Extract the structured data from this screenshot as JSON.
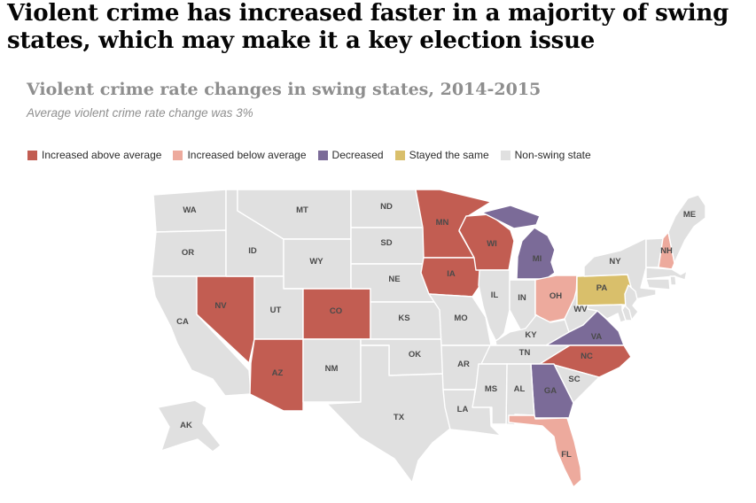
{
  "header": {
    "headline": "Violent crime has increased faster in a majority of swing states, which may make it a key election issue",
    "title": "Violent crime rate changes in swing states, 2014-2015",
    "subtitle": "Average violent crime rate change was 3%"
  },
  "chart_data": {
    "type": "heatmap",
    "subtype": "us-state-choropleth",
    "title": "Violent crime rate changes in swing states, 2014-2015",
    "note": "Average violent crime rate change was 3%",
    "average_change_percent": 3,
    "legend_position": "top",
    "default_category": "nonswing",
    "categories": [
      {
        "key": "above",
        "label": "Increased above average",
        "color": "#c25d52",
        "states": [
          "MN",
          "WI",
          "IA",
          "NV",
          "CO",
          "AZ",
          "NC"
        ]
      },
      {
        "key": "below",
        "label": "Increased below average",
        "color": "#edaa9d",
        "states": [
          "NH",
          "OH",
          "FL"
        ]
      },
      {
        "key": "decreased",
        "label": "Decreased",
        "color": "#7b6b98",
        "states": [
          "MI",
          "VA",
          "GA"
        ]
      },
      {
        "key": "same",
        "label": "Stayed the same",
        "color": "#d9bf6b",
        "states": [
          "PA"
        ]
      },
      {
        "key": "nonswing",
        "label": "Non-swing state",
        "color": "#e0e0e0",
        "states": []
      }
    ]
  },
  "map": {
    "labeled_states": [
      "WA",
      "OR",
      "CA",
      "NV",
      "ID",
      "MT",
      "WY",
      "UT",
      "CO",
      "AZ",
      "NM",
      "ND",
      "SD",
      "NE",
      "KS",
      "OK",
      "TX",
      "MN",
      "IA",
      "MO",
      "AR",
      "LA",
      "WI",
      "IL",
      "IN",
      "MI",
      "OH",
      "KY",
      "TN",
      "MS",
      "AL",
      "GA",
      "FL",
      "SC",
      "NC",
      "VA",
      "WV",
      "PA",
      "NY",
      "NH",
      "ME",
      "AK"
    ]
  }
}
